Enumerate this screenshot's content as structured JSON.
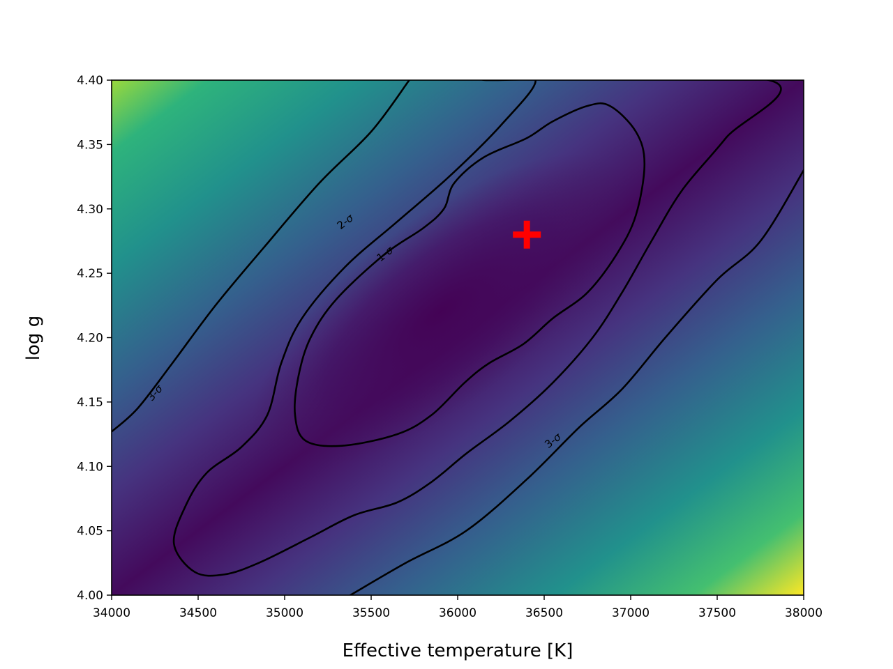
{
  "chart_data": {
    "type": "heatmap",
    "subtype": "filled-contour with confidence contours",
    "title": "",
    "xlabel": "Effective temperature [K]",
    "ylabel": "log g",
    "xlim": [
      34000,
      38000
    ],
    "ylim": [
      4.0,
      4.4
    ],
    "xticks": [
      "34000",
      "34500",
      "35000",
      "35500",
      "36000",
      "36500",
      "37000",
      "37500",
      "38000"
    ],
    "yticks": [
      "4.00",
      "4.05",
      "4.10",
      "4.15",
      "4.20",
      "4.25",
      "4.30",
      "4.35",
      "4.40"
    ],
    "colormap": "viridis",
    "grid": false,
    "best_fit": {
      "teff": 36400,
      "logg": 4.28,
      "marker": "plus",
      "color": "#ff0000"
    },
    "contours": [
      {
        "level": "1-σ",
        "label": "1-$\\sigma$",
        "label_at": [
          35580,
          4.265
        ],
        "label_angle": -38,
        "closed": true,
        "points": [
          [
            36880,
            4.38
          ],
          [
            37030,
            4.36
          ],
          [
            37080,
            4.335
          ],
          [
            37030,
            4.295
          ],
          [
            36920,
            4.265
          ],
          [
            36750,
            4.235
          ],
          [
            36550,
            4.215
          ],
          [
            36380,
            4.195
          ],
          [
            36180,
            4.18
          ],
          [
            36040,
            4.165
          ],
          [
            35850,
            4.14
          ],
          [
            35650,
            4.125
          ],
          [
            35330,
            4.116
          ],
          [
            35120,
            4.12
          ],
          [
            35060,
            4.14
          ],
          [
            35080,
            4.17
          ],
          [
            35150,
            4.2
          ],
          [
            35300,
            4.23
          ],
          [
            35580,
            4.265
          ],
          [
            35800,
            4.285
          ],
          [
            35920,
            4.3
          ],
          [
            35980,
            4.32
          ],
          [
            36150,
            4.34
          ],
          [
            36400,
            4.355
          ],
          [
            36550,
            4.368
          ],
          [
            36750,
            4.38
          ]
        ]
      },
      {
        "level": "2-σ",
        "label": "2-$\\sigma$",
        "label_at": [
          35350,
          4.29
        ],
        "label_angle": -38,
        "closed": true,
        "points": [
          [
            36200,
            4.4
          ],
          [
            36450,
            4.4
          ],
          [
            36250,
            4.365
          ],
          [
            35950,
            4.325
          ],
          [
            35650,
            4.29
          ],
          [
            35350,
            4.255
          ],
          [
            35100,
            4.215
          ],
          [
            34980,
            4.18
          ],
          [
            34900,
            4.14
          ],
          [
            34750,
            4.115
          ],
          [
            34550,
            4.095
          ],
          [
            34430,
            4.07
          ],
          [
            34360,
            4.04
          ],
          [
            34480,
            4.018
          ],
          [
            34650,
            4.016
          ],
          [
            34850,
            4.025
          ],
          [
            35150,
            4.045
          ],
          [
            35400,
            4.062
          ],
          [
            35650,
            4.072
          ],
          [
            35850,
            4.088
          ],
          [
            36050,
            4.11
          ],
          [
            36300,
            4.135
          ],
          [
            36550,
            4.165
          ],
          [
            36780,
            4.2
          ],
          [
            36950,
            4.235
          ],
          [
            37120,
            4.275
          ],
          [
            37300,
            4.315
          ],
          [
            37550,
            4.355
          ],
          [
            37800,
            4.4
          ]
        ]
      },
      {
        "level": "3-σ",
        "label": "3-$\\sigma$",
        "label_at": [
          34250,
          4.157
        ],
        "label_angle": -48,
        "closed": false,
        "points": [
          [
            34000,
            4.127
          ],
          [
            34150,
            4.145
          ],
          [
            34350,
            4.18
          ],
          [
            34600,
            4.225
          ],
          [
            34880,
            4.27
          ],
          [
            35200,
            4.32
          ],
          [
            35500,
            4.36
          ],
          [
            35720,
            4.4
          ]
        ]
      },
      {
        "level": "3-σ",
        "label": "3-$\\sigma$",
        "label_at": [
          36550,
          4.12
        ],
        "label_angle": -38,
        "closed": false,
        "points": [
          [
            35380,
            4.0
          ],
          [
            35700,
            4.025
          ],
          [
            36050,
            4.05
          ],
          [
            36400,
            4.09
          ],
          [
            36700,
            4.13
          ],
          [
            36950,
            4.16
          ],
          [
            37200,
            4.2
          ],
          [
            37500,
            4.245
          ],
          [
            37750,
            4.275
          ],
          [
            38000,
            4.33
          ]
        ]
      }
    ]
  }
}
